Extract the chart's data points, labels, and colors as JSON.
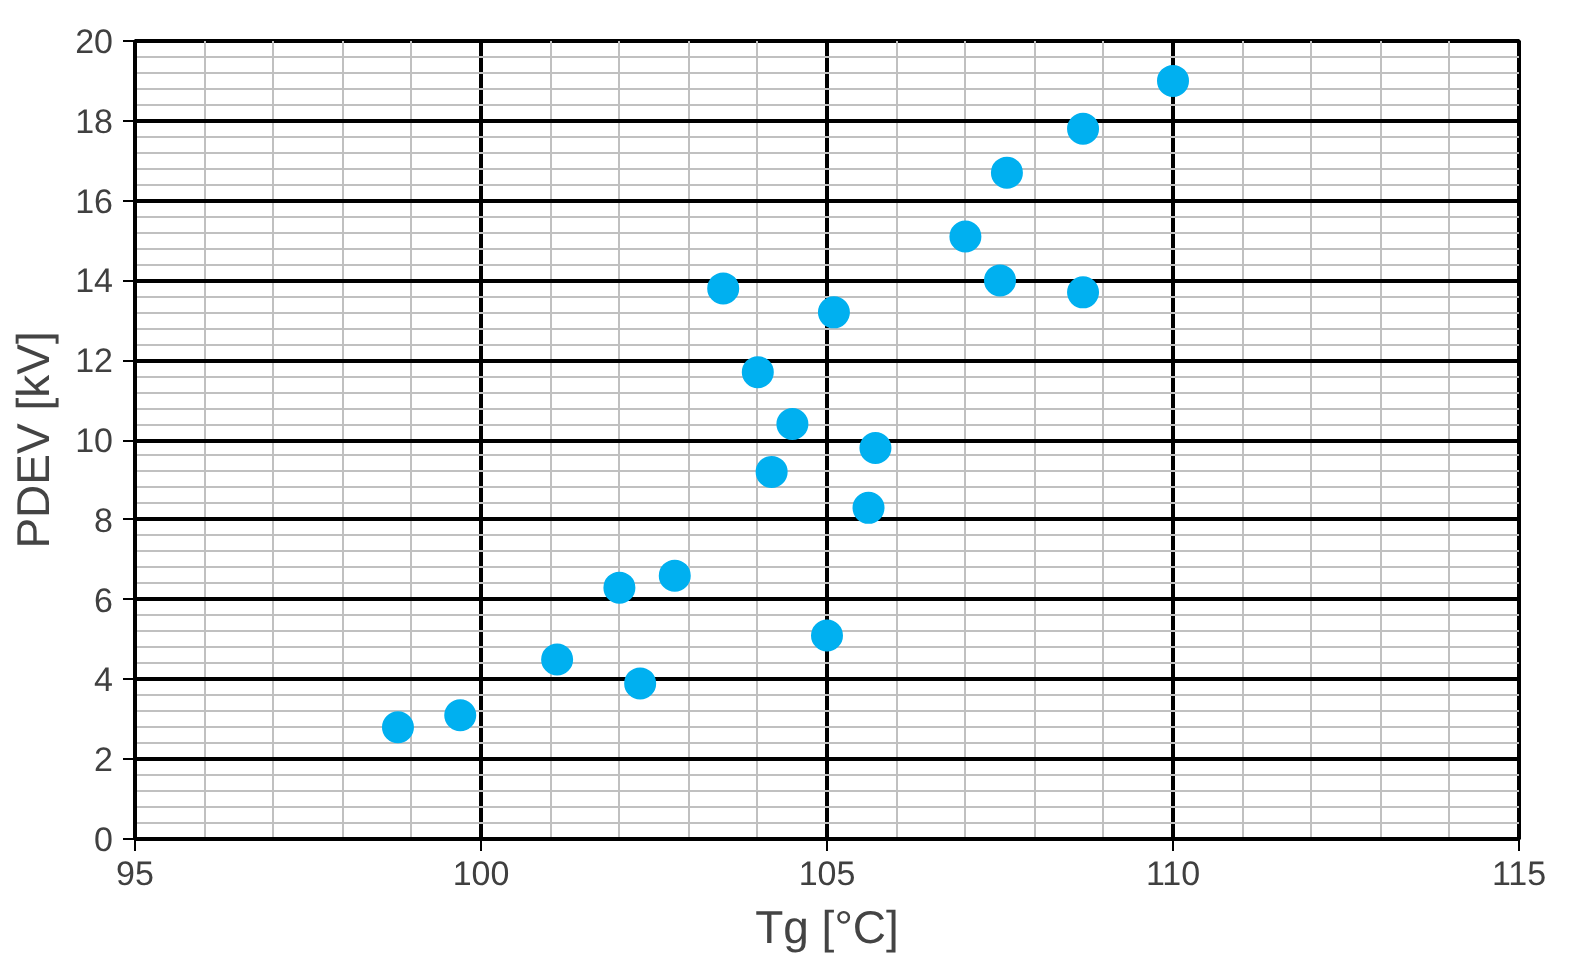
{
  "chart_data": {
    "type": "scatter",
    "xlabel": "Tg [°C]",
    "ylabel": "PDEV [kV]",
    "x": [
      110.0,
      108.7,
      107.6,
      107.0,
      107.5,
      108.7,
      103.5,
      105.1,
      104.0,
      104.5,
      105.7,
      104.2,
      105.6,
      102.8,
      102.0,
      105.0,
      101.1,
      102.3,
      99.7,
      98.8
    ],
    "values": [
      19.0,
      17.8,
      16.7,
      15.1,
      14.0,
      13.7,
      13.8,
      13.2,
      11.7,
      10.4,
      9.8,
      9.2,
      8.3,
      6.6,
      6.3,
      5.1,
      4.5,
      3.9,
      3.1,
      2.8
    ],
    "color": "#00b0f0",
    "marker": "circle",
    "xlim": [
      95,
      115
    ],
    "xticks": [
      95,
      100,
      105,
      110,
      115
    ],
    "ylim": [
      0,
      20
    ],
    "yticks": [
      0,
      2,
      4,
      6,
      8,
      10,
      12,
      14,
      16,
      18,
      20
    ],
    "grid": true
  }
}
